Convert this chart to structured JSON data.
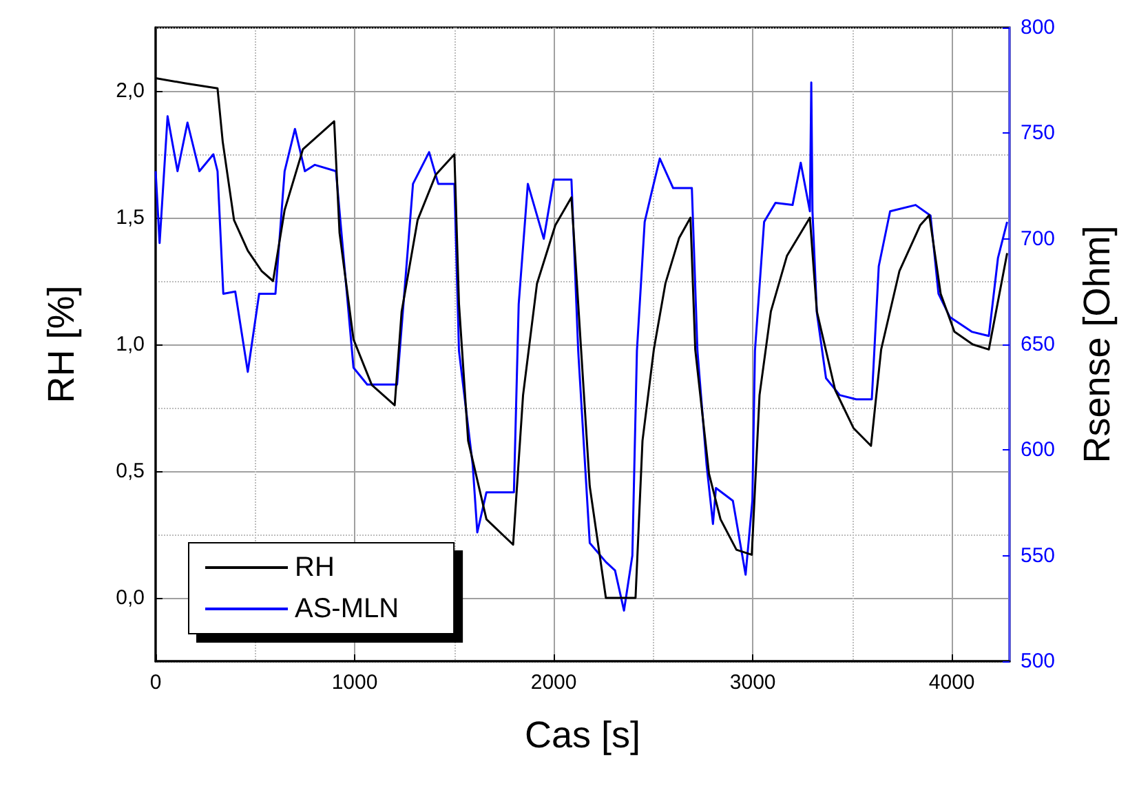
{
  "chart_data": {
    "type": "line",
    "xlabel": "Cas [s]",
    "ylabel": "RH [%]",
    "y2label": "Rsense [Ohm]",
    "xlim": [
      0,
      4290
    ],
    "xticks": [
      0,
      1000,
      2000,
      3000,
      4000
    ],
    "ylim": [
      -0.25,
      2.25
    ],
    "yticks": [
      {
        "value": 0,
        "label": "0,0"
      },
      {
        "value": 0.5,
        "label": "0,5"
      },
      {
        "value": 1,
        "label": "1,0"
      },
      {
        "value": 1.5,
        "label": "1,5"
      },
      {
        "value": 2,
        "label": "2,0"
      }
    ],
    "y2lim": [
      500,
      800
    ],
    "y2ticks": [
      500,
      550,
      600,
      650,
      700,
      750,
      800
    ],
    "grid": true,
    "legend": "bottom left",
    "marker": "none",
    "line_style": "solid",
    "series": [
      {
        "name": "RH",
        "color": "#000000",
        "x": [
          0,
          150,
          311,
          337,
          394,
          463,
          532,
          590,
          648,
          740,
          897,
          924,
          994,
          1086,
          1201,
          1236,
          1316,
          1408,
          1501,
          1524,
          1570,
          1662,
          1796,
          1846,
          1916,
          2008,
          2089,
          2123,
          2181,
          2262,
          2411,
          2446,
          2503,
          2561,
          2630,
          2687,
          2711,
          2780,
          2838,
          2918,
          2995,
          3034,
          3091,
          3172,
          3287,
          3322,
          3414,
          3506,
          3594,
          3645,
          3737,
          3841,
          3887,
          3944,
          4013,
          4105,
          4186,
          4278
        ],
        "values": [
          2.05,
          2.03,
          2.01,
          1.8,
          1.49,
          1.37,
          1.29,
          1.25,
          1.53,
          1.77,
          1.88,
          1.44,
          1.02,
          0.84,
          0.76,
          1.13,
          1.49,
          1.67,
          1.75,
          1.16,
          0.62,
          0.31,
          0.21,
          0.8,
          1.24,
          1.47,
          1.58,
          1.16,
          0.44,
          0.0,
          0.0,
          0.62,
          0.98,
          1.24,
          1.42,
          1.5,
          0.98,
          0.49,
          0.31,
          0.19,
          0.17,
          0.8,
          1.13,
          1.35,
          1.5,
          1.13,
          0.82,
          0.67,
          0.6,
          0.98,
          1.29,
          1.47,
          1.51,
          1.2,
          1.05,
          1.0,
          0.98,
          1.36
        ]
      },
      {
        "name": "AS-MLN",
        "color": "#0000ff",
        "axis": "y2",
        "x": [
          0,
          20,
          60,
          110,
          160,
          220,
          290,
          311,
          340,
          400,
          463,
          520,
          602,
          648,
          700,
          750,
          800,
          906,
          994,
          1063,
          1190,
          1213,
          1293,
          1374,
          1420,
          1501,
          1524,
          1593,
          1616,
          1662,
          1800,
          1824,
          1870,
          1950,
          2000,
          2089,
          2123,
          2181,
          2262,
          2308,
          2353,
          2395,
          2418,
          2457,
          2492,
          2533,
          2600,
          2694,
          2722,
          2768,
          2800,
          2815,
          2900,
          2964,
          2998,
          3011,
          3057,
          3114,
          3200,
          3241,
          3287,
          3294,
          3300,
          3322,
          3368,
          3437,
          3520,
          3598,
          3633,
          3690,
          3818,
          3893,
          3933,
          3990,
          4100,
          4186,
          4232,
          4278
        ],
        "values": [
          732,
          698,
          758,
          732,
          755,
          732,
          740,
          732,
          674,
          675,
          637,
          674,
          674,
          732,
          752,
          732,
          735,
          732,
          639,
          631,
          631,
          631,
          726,
          741,
          726,
          726,
          647,
          593,
          561,
          580,
          580,
          669,
          726,
          700,
          728,
          728,
          647,
          556,
          547,
          543,
          524,
          550,
          647,
          708,
          722,
          738,
          724,
          724,
          647,
          593,
          565,
          582,
          576,
          541,
          576,
          647,
          708,
          717,
          716,
          736,
          713,
          774,
          713,
          665,
          634,
          626,
          624,
          624,
          687,
          713,
          716,
          711,
          674,
          663,
          656,
          654,
          691,
          708
        ]
      }
    ]
  }
}
